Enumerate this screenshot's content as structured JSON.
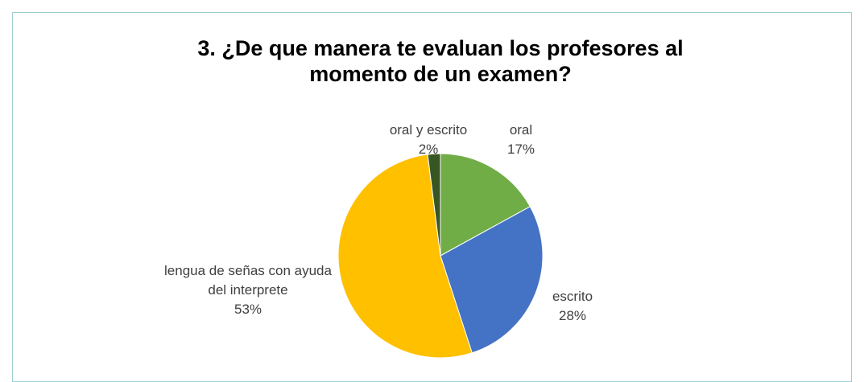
{
  "chart_data": {
    "type": "pie",
    "title": "3. ¿De que manera te evaluan los profesores al momento de un examen?",
    "categories": [
      "oral",
      "escrito",
      "lengua de señas con ayuda del interprete",
      "oral y escrito"
    ],
    "values": [
      17,
      28,
      53,
      2
    ],
    "value_labels": [
      "17%",
      "28%",
      "53%",
      "2%"
    ],
    "colors": [
      "#70ad47",
      "#4472c4",
      "#ffc000",
      "#375623"
    ]
  }
}
